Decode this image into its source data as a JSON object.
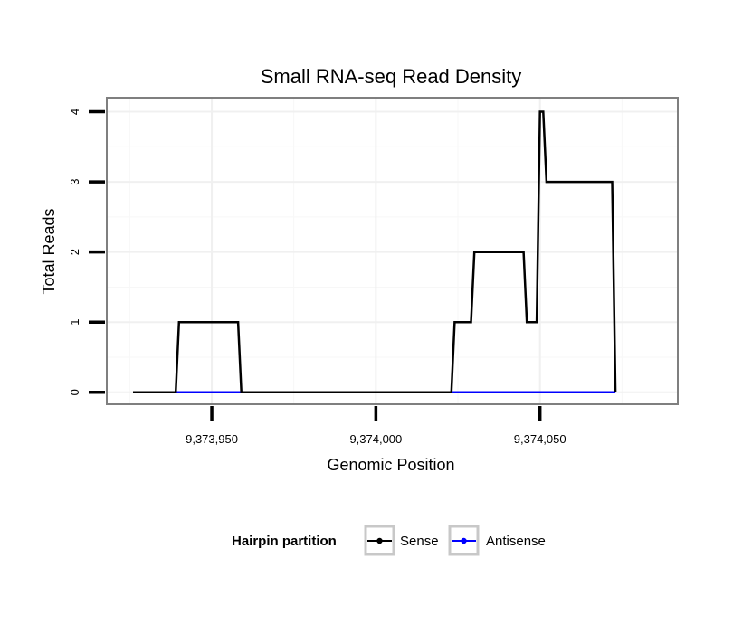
{
  "chart_data": {
    "type": "line",
    "title": "Small RNA-seq Read Density",
    "xlabel": "Genomic Position",
    "ylabel": "Total Reads",
    "xlim": [
      9373918,
      9374092
    ],
    "ylim": [
      -0.17,
      4.2
    ],
    "x_ticks": [
      9373950,
      9374000,
      9374050
    ],
    "x_tick_labels": [
      "9,373,950",
      "9,374,000",
      "9,374,050"
    ],
    "y_ticks": [
      0,
      1,
      2,
      3,
      4
    ],
    "y_tick_labels": [
      "0",
      "1",
      "2",
      "3",
      "4"
    ],
    "grid": true,
    "legend": {
      "title": "Hairpin partition",
      "position": "bottom",
      "entries": [
        "Sense",
        "Antisense"
      ]
    },
    "series": [
      {
        "name": "Sense",
        "color": "#000000",
        "x": [
          9373926,
          9373939,
          9373940,
          9373958,
          9373959,
          9374023,
          9374024,
          9374029,
          9374030,
          9374045,
          9374046,
          9374049,
          9374050,
          9374051,
          9374052,
          9374072,
          9374073
        ],
        "y": [
          0,
          0,
          1,
          1,
          0,
          0,
          1,
          1,
          2,
          2,
          1,
          1,
          4,
          4,
          3,
          3,
          0
        ]
      },
      {
        "name": "Antisense",
        "color": "#0000ff",
        "x": [
          9373926,
          9374073
        ],
        "y": [
          0,
          0
        ]
      }
    ]
  }
}
